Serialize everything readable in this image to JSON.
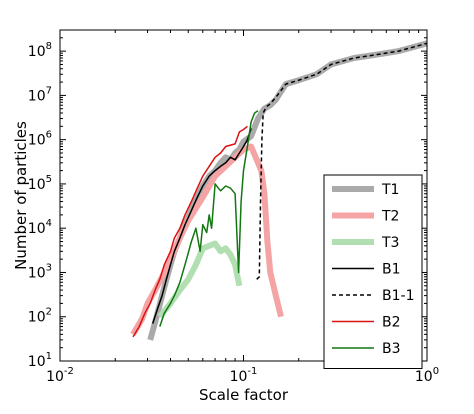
{
  "chart_data": {
    "type": "line",
    "title": "",
    "xlabel": "Scale factor",
    "ylabel": "Number of particles",
    "xscale": "log",
    "yscale": "log",
    "xlim": [
      0.01,
      1
    ],
    "ylim": [
      10,
      300000000
    ],
    "x_ticks": [
      {
        "base": "10",
        "exp": "-2",
        "value": 0.01
      },
      {
        "base": "10",
        "exp": "-1",
        "value": 0.1
      },
      {
        "base": "10",
        "exp": "0",
        "value": 1
      }
    ],
    "y_ticks": [
      {
        "base": "10",
        "exp": "1",
        "value": 10
      },
      {
        "base": "10",
        "exp": "2",
        "value": 100
      },
      {
        "base": "10",
        "exp": "3",
        "value": 1000
      },
      {
        "base": "10",
        "exp": "4",
        "value": 10000
      },
      {
        "base": "10",
        "exp": "5",
        "value": 100000
      },
      {
        "base": "10",
        "exp": "6",
        "value": 1000000
      },
      {
        "base": "10",
        "exp": "7",
        "value": 10000000
      },
      {
        "base": "10",
        "exp": "8",
        "value": 100000000
      }
    ],
    "legend_position": "lower-right",
    "grid": false,
    "series": [
      {
        "name": "T1",
        "color": "#aaaaaa",
        "style": "thick-solid",
        "points": [
          [
            0.031,
            30
          ],
          [
            0.0325,
            60
          ],
          [
            0.034,
            120
          ],
          [
            0.036,
            300
          ],
          [
            0.038,
            700
          ],
          [
            0.04,
            1500
          ],
          [
            0.042,
            3000
          ],
          [
            0.045,
            6000
          ],
          [
            0.048,
            12000
          ],
          [
            0.052,
            25000
          ],
          [
            0.056,
            50000
          ],
          [
            0.06,
            90000
          ],
          [
            0.065,
            150000
          ],
          [
            0.07,
            200000
          ],
          [
            0.075,
            300000
          ],
          [
            0.08,
            400000
          ],
          [
            0.085,
            350000
          ],
          [
            0.09,
            500000
          ],
          [
            0.095,
            600000
          ],
          [
            0.1,
            900000
          ],
          [
            0.11,
            1200000
          ],
          [
            0.12,
            3000000
          ],
          [
            0.13,
            5000000
          ],
          [
            0.14,
            6000000
          ],
          [
            0.15,
            8000000
          ],
          [
            0.17,
            18000000
          ],
          [
            0.2,
            22000000
          ],
          [
            0.25,
            30000000
          ],
          [
            0.3,
            50000000
          ],
          [
            0.4,
            70000000
          ],
          [
            0.5,
            80000000
          ],
          [
            0.7,
            100000000
          ],
          [
            1.0,
            150000000
          ]
        ]
      },
      {
        "name": "T2",
        "color": "#f4a4a4",
        "style": "thick-solid",
        "points": [
          [
            0.025,
            40
          ],
          [
            0.028,
            90
          ],
          [
            0.03,
            200
          ],
          [
            0.033,
            400
          ],
          [
            0.036,
            800
          ],
          [
            0.04,
            2000
          ],
          [
            0.045,
            6000
          ],
          [
            0.05,
            15000
          ],
          [
            0.06,
            50000
          ],
          [
            0.07,
            150000
          ],
          [
            0.08,
            250000
          ],
          [
            0.09,
            400000
          ],
          [
            0.1,
            600000
          ],
          [
            0.11,
            700000
          ],
          [
            0.12,
            300000
          ],
          [
            0.125,
            200000
          ],
          [
            0.13,
            60000
          ],
          [
            0.135,
            5000
          ],
          [
            0.14,
            1000
          ],
          [
            0.15,
            300
          ],
          [
            0.16,
            100
          ]
        ]
      },
      {
        "name": "T3",
        "color": "#b2dfb2",
        "style": "thick-solid",
        "points": [
          [
            0.035,
            100
          ],
          [
            0.04,
            200
          ],
          [
            0.045,
            400
          ],
          [
            0.05,
            700
          ],
          [
            0.055,
            1500
          ],
          [
            0.06,
            3500
          ],
          [
            0.065,
            4000
          ],
          [
            0.07,
            4500
          ],
          [
            0.075,
            3000
          ],
          [
            0.08,
            3500
          ],
          [
            0.085,
            2500
          ],
          [
            0.09,
            1500
          ],
          [
            0.095,
            500
          ]
        ]
      },
      {
        "name": "B1",
        "color": "#000000",
        "style": "solid",
        "points": [
          [
            0.032,
            70
          ],
          [
            0.034,
            150
          ],
          [
            0.036,
            300
          ],
          [
            0.038,
            700
          ],
          [
            0.04,
            1500
          ],
          [
            0.042,
            3000
          ],
          [
            0.045,
            6000
          ],
          [
            0.048,
            12000
          ],
          [
            0.052,
            25000
          ],
          [
            0.056,
            50000
          ],
          [
            0.06,
            90000
          ],
          [
            0.065,
            150000
          ],
          [
            0.07,
            200000
          ],
          [
            0.075,
            250000
          ],
          [
            0.08,
            300000
          ],
          [
            0.085,
            400000
          ],
          [
            0.09,
            350000
          ],
          [
            0.095,
            500000
          ],
          [
            0.1,
            700000
          ],
          [
            0.105,
            1000000
          ],
          [
            0.11,
            1800000
          ]
        ]
      },
      {
        "name": "B1-1",
        "color": "#000000",
        "style": "dashed",
        "points": [
          [
            0.118,
            700
          ],
          [
            0.122,
            800
          ],
          [
            0.124,
            50000
          ],
          [
            0.126,
            1000000
          ],
          [
            0.128,
            4000000
          ],
          [
            0.133,
            5500000
          ],
          [
            0.14,
            6500000
          ],
          [
            0.15,
            9000000
          ],
          [
            0.17,
            18000000
          ],
          [
            0.2,
            22000000
          ],
          [
            0.25,
            30000000
          ],
          [
            0.3,
            50000000
          ],
          [
            0.4,
            70000000
          ],
          [
            0.5,
            80000000
          ],
          [
            0.7,
            100000000
          ],
          [
            1.0,
            150000000
          ]
        ]
      },
      {
        "name": "B2",
        "color": "#dd1111",
        "style": "solid",
        "points": [
          [
            0.025,
            35
          ],
          [
            0.027,
            60
          ],
          [
            0.029,
            120
          ],
          [
            0.031,
            200
          ],
          [
            0.033,
            400
          ],
          [
            0.035,
            700
          ],
          [
            0.037,
            1500
          ],
          [
            0.04,
            3000
          ],
          [
            0.042,
            6000
          ],
          [
            0.045,
            10000
          ],
          [
            0.048,
            20000
          ],
          [
            0.052,
            40000
          ],
          [
            0.056,
            80000
          ],
          [
            0.06,
            150000
          ],
          [
            0.065,
            250000
          ],
          [
            0.07,
            400000
          ],
          [
            0.075,
            500000
          ],
          [
            0.08,
            700000
          ],
          [
            0.09,
            800000
          ],
          [
            0.095,
            1500000
          ],
          [
            0.1,
            1700000
          ],
          [
            0.105,
            2000000
          ]
        ]
      },
      {
        "name": "B3",
        "color": "#117711",
        "style": "solid",
        "points": [
          [
            0.035,
            60
          ],
          [
            0.037,
            120
          ],
          [
            0.04,
            200
          ],
          [
            0.042,
            300
          ],
          [
            0.045,
            600
          ],
          [
            0.048,
            1500
          ],
          [
            0.052,
            5000
          ],
          [
            0.055,
            10000
          ],
          [
            0.058,
            3000
          ],
          [
            0.06,
            12000
          ],
          [
            0.063,
            8000
          ],
          [
            0.065,
            20000
          ],
          [
            0.067,
            10000
          ],
          [
            0.07,
            100000
          ],
          [
            0.073,
            80000
          ],
          [
            0.075,
            70000
          ],
          [
            0.08,
            90000
          ],
          [
            0.085,
            80000
          ],
          [
            0.09,
            60000
          ],
          [
            0.094,
            1000
          ],
          [
            0.097,
            40000
          ],
          [
            0.1,
            200000
          ],
          [
            0.105,
            700000
          ],
          [
            0.11,
            2500000
          ],
          [
            0.115,
            4000000
          ],
          [
            0.12,
            4500000
          ]
        ]
      }
    ]
  }
}
